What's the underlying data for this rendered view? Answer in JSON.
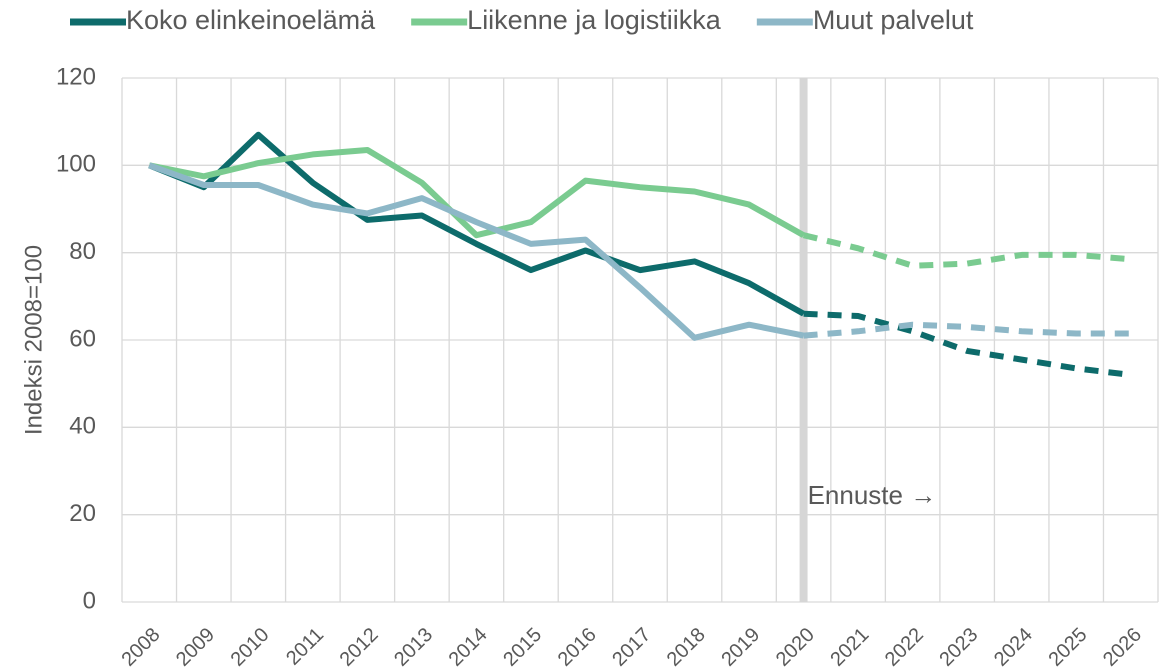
{
  "chart_data": {
    "type": "line",
    "y_label": "Indeksi 2008=100",
    "categories": [
      "2008",
      "2009",
      "2010",
      "2011",
      "2012",
      "2013",
      "2014",
      "2015",
      "2016",
      "2017",
      "2018",
      "2019",
      "2020",
      "2021",
      "2022",
      "2023",
      "2024",
      "2025",
      "2026"
    ],
    "series": [
      {
        "name": "Koko elinkeinoelämä",
        "color": "#0d6b6b",
        "values": [
          100,
          95,
          107,
          96,
          87.5,
          88.5,
          82,
          76,
          80.5,
          76,
          78,
          73,
          66,
          65.5,
          62,
          57.5,
          55.5,
          53.5,
          52
        ]
      },
      {
        "name": "Liikenne ja logistiikka",
        "color": "#7acb90",
        "values": [
          100,
          97.5,
          100.5,
          102.5,
          103.5,
          96,
          84,
          87,
          96.5,
          95,
          94,
          91,
          84,
          81,
          77,
          77.5,
          79.5,
          79.5,
          78.5
        ]
      },
      {
        "name": "Muut palvelut",
        "color": "#8db7c7",
        "values": [
          100,
          95.5,
          95.5,
          91,
          89,
          92.5,
          87,
          82,
          83,
          72,
          60.5,
          63.5,
          61,
          62,
          63.5,
          63,
          62,
          61.5,
          61.5
        ]
      }
    ],
    "annotation": {
      "text": "Ennuste →",
      "x": "2020"
    },
    "ylim": [
      0,
      120
    ],
    "yticks": [
      0,
      20,
      40,
      60,
      80,
      100,
      120
    ],
    "grid": true,
    "legend": "top"
  }
}
